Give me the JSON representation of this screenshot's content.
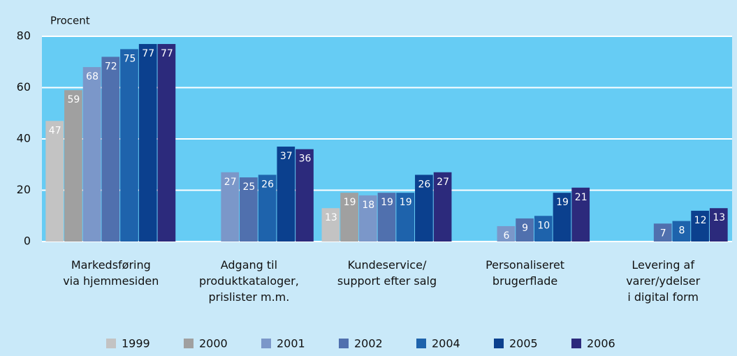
{
  "chart_data": {
    "type": "bar",
    "y_label": "Procent",
    "categories": [
      "Markedsføring\nvia hjemmesiden",
      "Adgang til\nproduktkataloger,\nprislister m.m.",
      "Kundeservice/\nsupport efter salg",
      "Personaliseret\nbrugerflade",
      "Levering af\nvarer/ydelser\ni digital form"
    ],
    "series": [
      {
        "name": "1999",
        "color": "#c3c3c3",
        "values": [
          47,
          null,
          13,
          null,
          null
        ]
      },
      {
        "name": "2000",
        "color": "#a0a0a0",
        "values": [
          59,
          null,
          19,
          null,
          null
        ]
      },
      {
        "name": "2001",
        "color": "#7b97c9",
        "values": [
          68,
          27,
          18,
          6,
          null
        ]
      },
      {
        "name": "2002",
        "color": "#5070ae",
        "values": [
          72,
          25,
          19,
          9,
          7
        ]
      },
      {
        "name": "2004",
        "color": "#1e63ac",
        "values": [
          75,
          26,
          19,
          10,
          8
        ]
      },
      {
        "name": "2005",
        "color": "#0b408e",
        "values": [
          77,
          37,
          26,
          19,
          12
        ]
      },
      {
        "name": "2006",
        "color": "#2c2a7c",
        "values": [
          77,
          36,
          27,
          21,
          13
        ]
      }
    ],
    "ylim": [
      0,
      80
    ],
    "yticks": [
      0,
      20,
      40,
      60,
      80
    ],
    "grid": true
  }
}
